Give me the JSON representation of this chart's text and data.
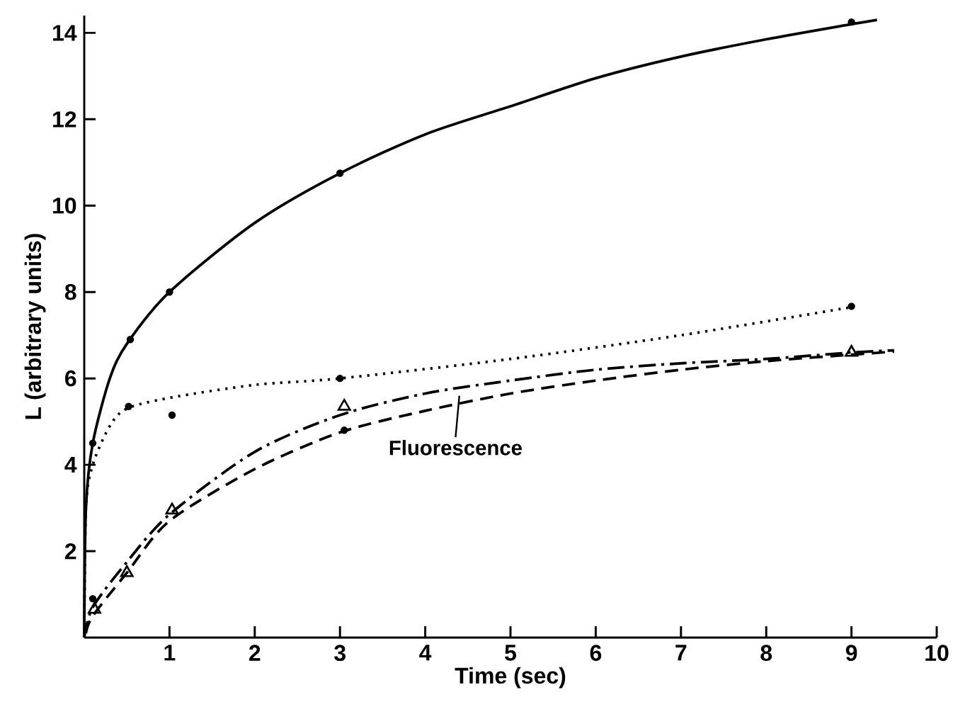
{
  "chart_data": {
    "type": "line",
    "xlabel": "Time (sec)",
    "ylabel": "L (arbitrary units)",
    "xlim": [
      0,
      10
    ],
    "ylim": [
      0,
      14.4
    ],
    "xticks": [
      1,
      2,
      3,
      4,
      5,
      6,
      7,
      8,
      9,
      10
    ],
    "yticks": [
      2,
      4,
      6,
      8,
      10,
      12,
      14
    ],
    "grid": false,
    "series": [
      {
        "color": "#000000",
        "line_style": "solid",
        "marker": "none",
        "x": [
          0,
          0.02,
          0.1,
          0.3,
          0.5,
          1,
          2,
          3,
          4,
          5,
          6,
          7,
          8,
          9,
          9.3
        ],
        "values": [
          0,
          3,
          4.5,
          6,
          6.8,
          8.0,
          9.6,
          10.75,
          11.65,
          12.3,
          12.95,
          13.45,
          13.85,
          14.2,
          14.3
        ]
      },
      {
        "type": "scatter",
        "color": "#000000",
        "marker": "circle",
        "x": [
          0.1,
          0.54,
          1,
          3,
          9
        ],
        "values": [
          4.5,
          6.9,
          8.0,
          10.75,
          14.25
        ]
      },
      {
        "color": "#000000",
        "line_style": "dotted",
        "marker": "none",
        "x": [
          0,
          0.02,
          0.1,
          0.3,
          0.5,
          1,
          2,
          3,
          5,
          7,
          9
        ],
        "values": [
          0,
          3,
          4,
          4.9,
          5.3,
          5.55,
          5.85,
          6.0,
          6.45,
          7.0,
          7.65
        ]
      },
      {
        "type": "scatter",
        "color": "#000000",
        "marker": "circle",
        "x": [
          0.52,
          1.03,
          3,
          9
        ],
        "values": [
          5.35,
          5.15,
          6.0,
          7.67
        ]
      },
      {
        "color": "#000000",
        "line_style": "dashdot",
        "marker": "none",
        "x": [
          0,
          0.1,
          0.5,
          1,
          2,
          3,
          4,
          5,
          6,
          7,
          8,
          9,
          9.5
        ],
        "values": [
          0,
          0.7,
          1.75,
          2.85,
          4.3,
          5.15,
          5.65,
          5.95,
          6.2,
          6.35,
          6.45,
          6.6,
          6.65
        ]
      },
      {
        "type": "scatter",
        "color": "#000000",
        "marker": "triangle",
        "x": [
          0.12,
          0.5,
          1.03,
          3.05,
          9
        ],
        "values": [
          0.65,
          1.5,
          2.95,
          5.35,
          6.6
        ]
      },
      {
        "color": "#000000",
        "line_style": "dashed",
        "marker": "none",
        "x": [
          0.02,
          0.1,
          0.5,
          1,
          2,
          3,
          4,
          5,
          6,
          7,
          8,
          9,
          9.5
        ],
        "values": [
          0.1,
          0.5,
          1.5,
          2.7,
          3.9,
          4.75,
          5.25,
          5.65,
          5.95,
          6.2,
          6.4,
          6.55,
          6.62
        ]
      },
      {
        "type": "scatter",
        "color": "#000000",
        "marker": "circle",
        "x": [
          0.1,
          3.05
        ],
        "values": [
          0.9,
          4.8
        ]
      }
    ],
    "annotations": [
      {
        "text": "Fluorescence",
        "x": 4.4,
        "y": 5.6
      }
    ]
  }
}
